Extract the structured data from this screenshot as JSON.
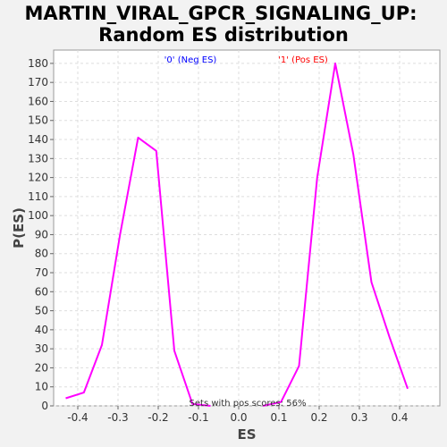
{
  "chart_data": {
    "type": "line",
    "title_line1": "MARTIN_VIRAL_GPCR_SIGNALING_UP:",
    "title_line2": "Random ES distribution",
    "xlabel": "ES",
    "ylabel": "P(ES)",
    "xlim": [
      -0.46,
      0.5
    ],
    "ylim": [
      0,
      187
    ],
    "x_ticks": [
      -0.4,
      -0.3,
      -0.2,
      -0.1,
      0.0,
      0.1,
      0.2,
      0.3,
      0.4
    ],
    "x_tick_labels": [
      "-0.4",
      "-0.3",
      "-0.2",
      "-0.1",
      "0.0",
      "0.1",
      "0.2",
      "0.3",
      "0.4"
    ],
    "y_ticks": [
      0,
      10,
      20,
      30,
      40,
      50,
      60,
      70,
      80,
      90,
      100,
      110,
      120,
      130,
      140,
      150,
      160,
      170,
      180
    ],
    "y_tick_labels": [
      "0",
      "10",
      "20",
      "30",
      "40",
      "50",
      "60",
      "70",
      "80",
      "90",
      "100",
      "110",
      "120",
      "130",
      "140",
      "150",
      "160",
      "170",
      "180"
    ],
    "grid": true,
    "line_color": "#ff00ff",
    "series": [
      {
        "name": "'0' (Neg ES)",
        "color": "#0000ff",
        "x": [
          -0.43,
          -0.385,
          -0.34,
          -0.295,
          -0.25,
          -0.205,
          -0.16,
          -0.115,
          -0.07
        ],
        "y": [
          4,
          7,
          32,
          90,
          141,
          134,
          29,
          1,
          0
        ]
      },
      {
        "name": "'1' (Pos ES)",
        "color": "#ff0000",
        "x": [
          0.06,
          0.105,
          0.15,
          0.195,
          0.24,
          0.285,
          0.33,
          0.375,
          0.42
        ],
        "y": [
          0,
          2,
          21,
          120,
          180,
          132,
          65,
          36,
          9
        ]
      }
    ],
    "annotation": "Sets with pos scores: 56%"
  }
}
